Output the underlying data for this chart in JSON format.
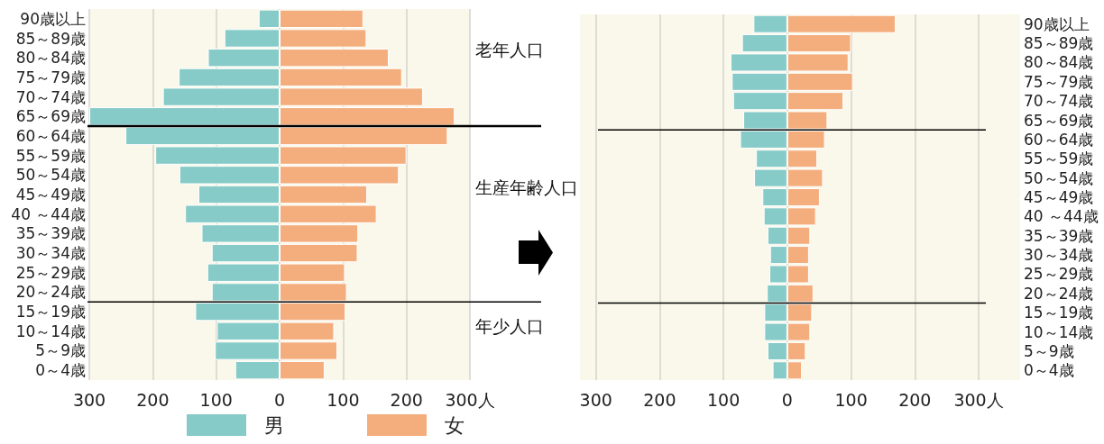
{
  "chart_data": [
    {
      "type": "bar",
      "orientation": "horizontal",
      "categories": [
        "90歳以上",
        "85～89歳",
        "80～84歳",
        "75～79歳",
        "70～74歳",
        "65～69歳",
        "60～64歳",
        "55～59歳",
        "50～54歳",
        "45～49歳",
        "40 ～44歳",
        "35～39歳",
        "30～34歳",
        "25～29歳",
        "20～24歳",
        "15～19歳",
        "10～14歳",
        "5～9歳",
        "0～4歳"
      ],
      "series": [
        {
          "name": "男",
          "color": "#86cbc8",
          "values": [
            -33,
            -87,
            -113,
            -159,
            -184,
            -300,
            -243,
            -196,
            -158,
            -128,
            -149,
            -123,
            -107,
            -114,
            -107,
            -133,
            -99,
            -102,
            -70
          ]
        },
        {
          "name": "女",
          "color": "#f4ae7e",
          "values": [
            132,
            137,
            172,
            193,
            226,
            276,
            265,
            200,
            188,
            138,
            153,
            124,
            123,
            103,
            106,
            104,
            86,
            91,
            71
          ]
        }
      ],
      "xlim": [
        -300,
        300
      ],
      "xticks": [
        {
          "value": -300,
          "label": "300"
        },
        {
          "value": -200,
          "label": "200"
        },
        {
          "value": -100,
          "label": "100"
        },
        0,
        100,
        200,
        {
          "value": 300,
          "label": "300人"
        }
      ],
      "grid": "x",
      "legend": "bottom",
      "ref_lines": [
        {
          "axis": "y",
          "value": "65～69歳"
        },
        {
          "axis": "y",
          "value": "20～24歳"
        }
      ],
      "stacked": true,
      "annotations": [
        "老年人口",
        "生産年齢人口",
        "年少人口"
      ]
    },
    {
      "type": "bar",
      "orientation": "horizontal",
      "categories": [
        "90歳以上",
        "85～89歳",
        "80～84歳",
        "75～79歳",
        "70～74歳",
        "65～69歳",
        "60～64歳",
        "55～59歳",
        "50～54歳",
        "45～49歳",
        "40 ～44歳",
        "35～39歳",
        "30～34歳",
        "25～29歳",
        "20～24歳",
        "15～19歳",
        "10～14歳",
        "5～9歳",
        "0～4歳"
      ],
      "series": [
        {
          "color": "#86cbc8",
          "values": [
            -53,
            -71,
            -89,
            -87,
            -85,
            -69,
            -74,
            -49,
            -52,
            -39,
            -37,
            -31,
            -27,
            -28,
            -32,
            -36,
            -36,
            -31,
            -23
          ]
        },
        {
          "color": "#f4ae7e",
          "values": [
            170,
            100,
            96,
            103,
            88,
            63,
            59,
            47,
            56,
            51,
            45,
            36,
            34,
            34,
            41,
            39,
            36,
            29,
            23
          ]
        }
      ],
      "stacked": true,
      "xlim": [
        -325,
        365
      ],
      "xticks": [
        {
          "value": -300,
          "label": "300"
        },
        {
          "value": -200,
          "label": "200"
        },
        {
          "value": -100,
          "label": "100"
        },
        0,
        100,
        200,
        {
          "value": 300,
          "label": "300人"
        }
      ],
      "grid": "x",
      "ref_lines": [
        {
          "axis": "y",
          "value": "65～69歳"
        },
        {
          "axis": "y",
          "value": "20～24歳"
        }
      ]
    }
  ]
}
